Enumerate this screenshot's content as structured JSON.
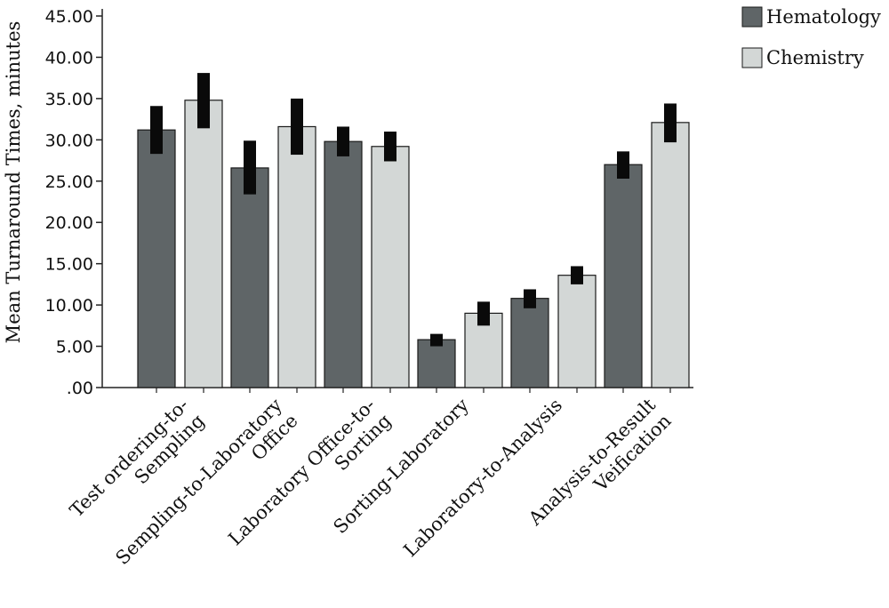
{
  "chart_data": {
    "type": "bar",
    "categories": [
      [
        "Test ordering-to-",
        "Sempling"
      ],
      [
        "Sempling-to-Laboratory",
        "Office"
      ],
      [
        "Laboratory Office-to-",
        "Sorting"
      ],
      [
        "Sorting-Laboratory"
      ],
      [
        "Laboratory-to-Analysis"
      ],
      [
        "Analysis-to-Result",
        "Veification"
      ]
    ],
    "series": [
      {
        "name": "Hematology",
        "color": "#5f6567",
        "values": [
          31.2,
          26.6,
          29.8,
          5.8,
          10.8,
          27.0
        ],
        "error_low": [
          28.3,
          23.4,
          28.0,
          5.0,
          9.6,
          25.3
        ],
        "error_high": [
          34.1,
          29.9,
          31.6,
          6.5,
          11.9,
          28.6
        ]
      },
      {
        "name": "Chemistry",
        "color": "#d3d7d6",
        "values": [
          34.8,
          31.6,
          29.2,
          9.0,
          13.6,
          32.1
        ],
        "error_low": [
          31.4,
          28.2,
          27.4,
          7.5,
          12.5,
          29.7
        ],
        "error_high": [
          38.1,
          35.0,
          31.0,
          10.4,
          14.7,
          34.4
        ]
      }
    ],
    "ylabel": "Mean Turnaround Times, minutes",
    "xlabel": "",
    "ylim": [
      0,
      45
    ],
    "yticks": [
      ".00",
      "5.00",
      "10.00",
      "15.00",
      "20.00",
      "25.00",
      "30.00",
      "35.00",
      "40.00",
      "45.00"
    ],
    "ytick_values": [
      0,
      5,
      10,
      15,
      20,
      25,
      30,
      35,
      40,
      45
    ],
    "legend_position": "top-right",
    "grid": false
  }
}
